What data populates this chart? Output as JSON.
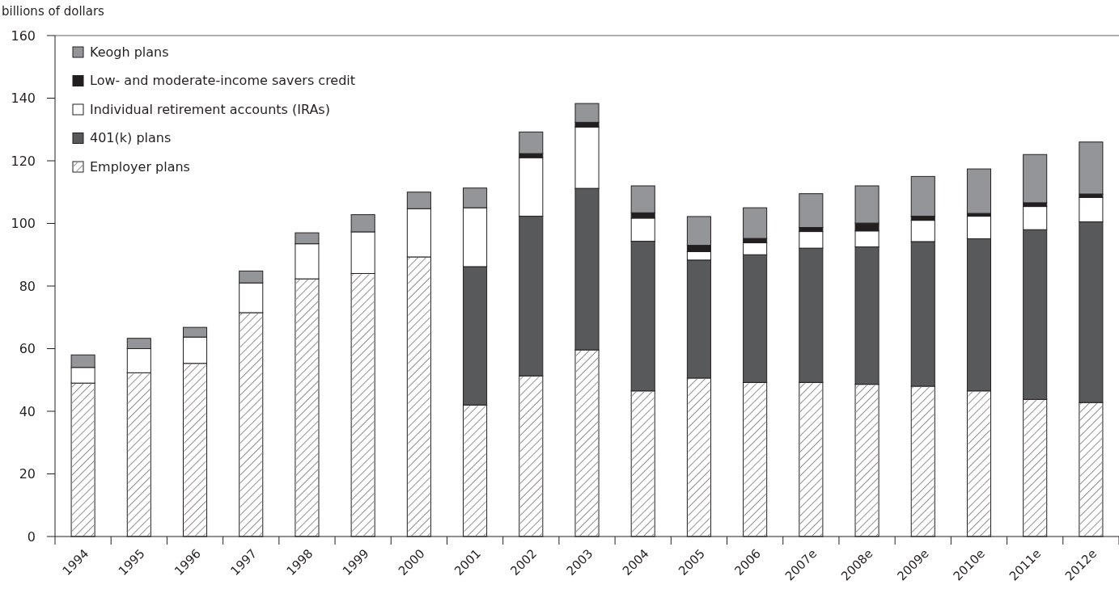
{
  "chart_data": {
    "type": "bar",
    "stacked": true,
    "ylabel": "billions of dollars",
    "categories": [
      "1994",
      "1995",
      "1996",
      "1997",
      "1998",
      "1999",
      "2000",
      "2001",
      "2002",
      "2003",
      "2004",
      "2005",
      "2006",
      "2007e",
      "2008e",
      "2009e",
      "2010e",
      "2011e",
      "2012e"
    ],
    "series": [
      {
        "name": "Employer plans",
        "color": "#ffffff",
        "values": [
          49,
          52.3,
          55.3,
          71.5,
          82.3,
          84,
          89.3,
          42,
          51.3,
          59.6,
          46.5,
          50.6,
          49.2,
          49.2,
          48.6,
          48,
          46.5,
          43.8,
          42.8
        ]
      },
      {
        "name": "401(k) plans",
        "color": "#58595b",
        "values": [
          0,
          0,
          0,
          0,
          0,
          0,
          0,
          44.2,
          51,
          51.6,
          47.8,
          37.7,
          40.8,
          42.9,
          43.9,
          46.2,
          48.6,
          54.2,
          57.7
        ]
      },
      {
        "name": "Individual retirement accounts (IRAs)",
        "color": "#ffffff",
        "values": [
          5,
          7.7,
          8.4,
          9.5,
          11.2,
          13.3,
          15.4,
          18.8,
          18.7,
          19.6,
          7.4,
          2.7,
          3.8,
          5.3,
          5.1,
          6.8,
          7.2,
          7.4,
          7.8
        ]
      },
      {
        "name": "Low- and moderate-income savers credit",
        "color": "#231f20",
        "values": [
          0,
          0,
          0,
          0,
          0,
          0,
          0,
          0,
          1.3,
          1.5,
          1.7,
          2,
          1.4,
          1.3,
          2.5,
          1.3,
          0.9,
          1.2,
          1.1
        ]
      },
      {
        "name": "Keogh plans",
        "color": "#939598",
        "values": [
          4,
          3.3,
          3.1,
          3.8,
          3.5,
          5.5,
          5.3,
          6.3,
          6.9,
          6,
          8.6,
          9.2,
          9.8,
          10.8,
          11.9,
          12.7,
          14.2,
          15.4,
          16.6
        ]
      }
    ],
    "ylim": [
      0,
      160
    ],
    "yticks": [
      0,
      20,
      40,
      60,
      80,
      100,
      120,
      140,
      160
    ],
    "grid": false,
    "legend": "top left"
  }
}
